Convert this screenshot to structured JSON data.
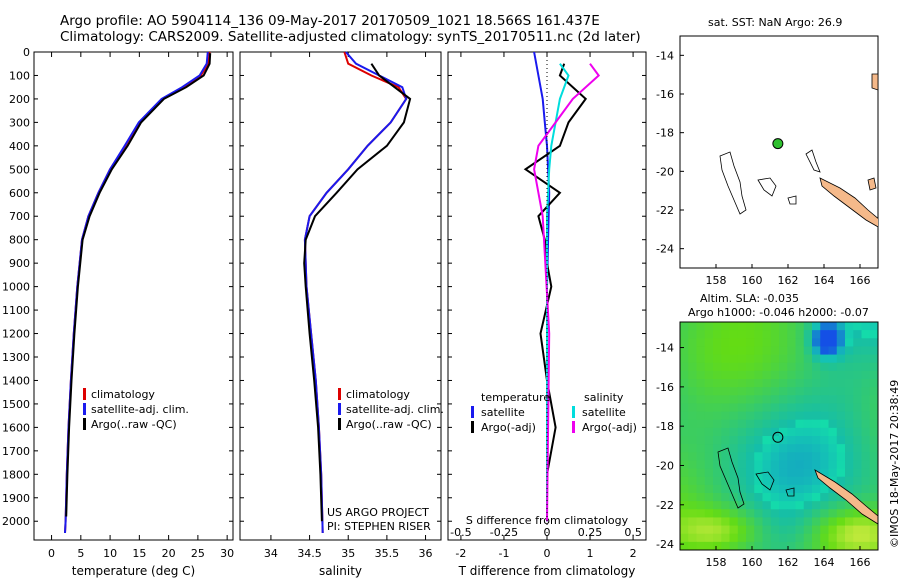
{
  "header": {
    "line1": "Argo profile: AO 5904114_136 09-May-2017 20170509_1021 18.566S 161.437E",
    "line2": "Climatology: CARS2009. Satellite-adjusted climatology: synTS_20170511.nc (2d later)"
  },
  "timestamp": "©IMOS 18-May-2017 20:38:49",
  "colors": {
    "climatology": "#dd0000",
    "satellite": "#1a1aee",
    "argo": "#000000",
    "salinity_sat": "#00dddd",
    "salinity_argo": "#ee00ee",
    "coast": "#000000",
    "land": "#f5b98a",
    "float_marker": "#2fc02f"
  },
  "chart_data": [
    {
      "type": "line",
      "name": "temperature_panel",
      "xlabel": "temperature (deg C)",
      "ylabel": "",
      "xlim": [
        -3,
        31
      ],
      "ylim": [
        2080,
        0
      ],
      "xticks": [
        0,
        5,
        10,
        15,
        20,
        25,
        30
      ],
      "yticks": [
        0,
        100,
        200,
        300,
        400,
        500,
        600,
        700,
        800,
        900,
        1000,
        1100,
        1200,
        1300,
        1400,
        1500,
        1600,
        1700,
        1800,
        1900,
        2000
      ],
      "legend": [
        "climatology",
        "satellite-adj. clim.",
        "Argo(..raw -QC)"
      ],
      "series": [
        {
          "name": "climatology",
          "color": "#dd0000",
          "x": [
            27,
            26.8,
            25.5,
            22.5,
            19,
            15,
            12.6,
            10,
            8,
            6.3,
            5.2,
            4.4,
            3.8,
            3.3,
            2.9,
            2.6,
            2.4,
            2.3
          ],
          "y": [
            0,
            50,
            100,
            150,
            200,
            300,
            400,
            500,
            600,
            700,
            800,
            1000,
            1200,
            1400,
            1600,
            1800,
            2000,
            2050
          ]
        },
        {
          "name": "satellite-adj. clim.",
          "color": "#1a1aee",
          "x": [
            26.7,
            26.5,
            25.3,
            22.3,
            18.8,
            14.9,
            12.5,
            10,
            8,
            6.3,
            5.2,
            4.4,
            3.8,
            3.3,
            2.9,
            2.6,
            2.4,
            2.3
          ],
          "y": [
            0,
            50,
            100,
            150,
            200,
            300,
            400,
            500,
            600,
            700,
            800,
            1000,
            1200,
            1400,
            1600,
            1800,
            2000,
            2050
          ]
        },
        {
          "name": "Argo(..raw -QC)",
          "color": "#000000",
          "x": [
            27.1,
            27,
            26,
            23,
            19.2,
            15.3,
            13,
            10.3,
            8.2,
            6.5,
            5.3,
            4.5,
            3.9,
            3.4,
            3,
            2.7,
            2.5
          ],
          "y": [
            5,
            50,
            100,
            150,
            200,
            300,
            400,
            500,
            600,
            700,
            800,
            1000,
            1200,
            1400,
            1600,
            1800,
            1980
          ]
        }
      ]
    },
    {
      "type": "line",
      "name": "salinity_panel",
      "xlabel": "salinity",
      "xlim": [
        33.6,
        36.2
      ],
      "ylim": [
        2080,
        0
      ],
      "xticks": [
        34,
        34.5,
        35,
        35.5,
        36
      ],
      "legend": [
        "climatology",
        "satellite-adj. clim.",
        "Argo(..raw -QC)"
      ],
      "annotation": [
        "US ARGO PROJECT",
        "PI: STEPHEN RISER"
      ],
      "series": [
        {
          "name": "climatology",
          "color": "#dd0000",
          "x": [
            34.95,
            35.0,
            35.3,
            35.65,
            35.75,
            35.55,
            35.25,
            35.0,
            34.72,
            34.5,
            34.44,
            34.46,
            34.52,
            34.58,
            34.62,
            34.65,
            34.67
          ],
          "y": [
            0,
            50,
            100,
            150,
            200,
            300,
            400,
            500,
            600,
            700,
            800,
            1000,
            1200,
            1400,
            1600,
            1800,
            2050
          ]
        },
        {
          "name": "satellite-adj. clim.",
          "color": "#1a1aee",
          "x": [
            34.97,
            35.1,
            35.4,
            35.7,
            35.75,
            35.55,
            35.25,
            35.0,
            34.72,
            34.5,
            34.44,
            34.46,
            34.52,
            34.58,
            34.62,
            34.65,
            34.67
          ],
          "y": [
            0,
            50,
            100,
            150,
            200,
            300,
            400,
            500,
            600,
            700,
            800,
            1000,
            1200,
            1400,
            1600,
            1800,
            2050
          ]
        },
        {
          "name": "Argo(..raw -QC)",
          "color": "#000000",
          "x": [
            35.3,
            35.4,
            35.8,
            35.72,
            35.5,
            35.12,
            34.85,
            34.57,
            34.45,
            34.43,
            34.45,
            34.5,
            34.56,
            34.61,
            34.64,
            34.66
          ],
          "y": [
            50,
            100,
            200,
            300,
            400,
            500,
            600,
            700,
            800,
            900,
            1000,
            1200,
            1400,
            1600,
            1800,
            2000
          ]
        }
      ]
    },
    {
      "type": "line",
      "name": "difference_panel",
      "xlabel": "T difference from climatology",
      "xlabel_top": "S difference from climatology",
      "xlim": [
        -2.3,
        2.3
      ],
      "ylim": [
        2080,
        0
      ],
      "xticks": [
        -2,
        -1,
        0,
        1,
        2
      ],
      "xticklabels_top": [
        "-0.5",
        "-0.25",
        "0",
        "0.25",
        "0.5"
      ],
      "legend_temperature": {
        "title": "temperature",
        "items": [
          "satellite",
          "Argo(-adj)"
        ]
      },
      "legend_salinity": {
        "title": "salinity",
        "items": [
          "satellite",
          "Argo(-adj)"
        ]
      },
      "series": [
        {
          "name": "temperature satellite",
          "color": "#1a1aee",
          "x": [
            -0.3,
            -0.2,
            -0.1,
            -0.05,
            0,
            0.05,
            0,
            0,
            0
          ],
          "y": [
            0,
            100,
            200,
            300,
            400,
            600,
            1000,
            1500,
            2000
          ]
        },
        {
          "name": "temperature Argo(-adj)",
          "color": "#000000",
          "x": [
            0.4,
            0.3,
            0.9,
            0.5,
            0.3,
            -0.5,
            0.3,
            -0.2,
            -0.05,
            0,
            0.1,
            -0.15,
            0,
            0.2,
            0,
            0
          ],
          "y": [
            50,
            100,
            200,
            300,
            400,
            500,
            600,
            700,
            800,
            900,
            1000,
            1200,
            1400,
            1600,
            1800,
            1980
          ]
        },
        {
          "name": "salinity satellite",
          "color": "#00dddd",
          "x": [
            0.3,
            0.5,
            0.3,
            0.2,
            0.1,
            0.05,
            0,
            0,
            0
          ],
          "y": [
            50,
            100,
            200,
            300,
            400,
            500,
            700,
            1200,
            2000
          ]
        },
        {
          "name": "salinity Argo(-adj)",
          "color": "#ee00ee",
          "x": [
            1.0,
            1.2,
            0.6,
            0.2,
            -0.2,
            -0.3,
            -0.1,
            0.05,
            0
          ],
          "y": [
            50,
            100,
            200,
            300,
            400,
            500,
            700,
            1200,
            2000
          ]
        }
      ]
    },
    {
      "type": "scatter",
      "name": "sst_map",
      "title": "sat. SST: NaN Argo: 26.9",
      "xlim": [
        156,
        167
      ],
      "ylim": [
        -25,
        -13
      ],
      "xticks": [
        158,
        160,
        162,
        164,
        166
      ],
      "yticks": [
        -14,
        -16,
        -18,
        -20,
        -22,
        -24
      ],
      "float_position": {
        "lon": 161.437,
        "lat": -18.566
      }
    },
    {
      "type": "heatmap",
      "name": "sla_map",
      "title_line1": "Altim. SLA: -0.035",
      "title_line2": "Argo h1000: -0.046 h2000: -0.07",
      "xlim": [
        156,
        167
      ],
      "ylim": [
        -24.3,
        -12.7
      ],
      "xticks": [
        158,
        160,
        162,
        164,
        166
      ],
      "yticks": [
        -14,
        -16,
        -18,
        -20,
        -22,
        -24
      ],
      "float_position": {
        "lon": 161.437,
        "lat": -18.566
      }
    }
  ]
}
